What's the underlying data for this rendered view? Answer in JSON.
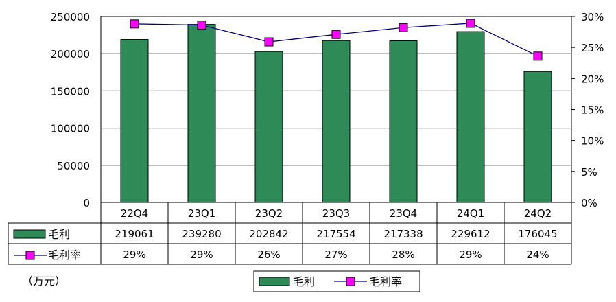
{
  "chart_data": {
    "type": "bar",
    "categories": [
      "22Q4",
      "23Q1",
      "23Q2",
      "23Q3",
      "23Q4",
      "24Q1",
      "24Q2"
    ],
    "series": [
      {
        "name": "毛利",
        "type": "bar",
        "axis": "left",
        "values": [
          219061,
          239280,
          202842,
          217554,
          217338,
          229612,
          176045
        ],
        "labels": [
          "219061",
          "239280",
          "202842",
          "217554",
          "217338",
          "229612",
          "176045"
        ]
      },
      {
        "name": "毛利率",
        "type": "line",
        "axis": "right",
        "values": [
          28.8,
          28.6,
          25.9,
          27.1,
          28.2,
          28.9,
          23.6
        ],
        "labels": [
          "29%",
          "29%",
          "26%",
          "27%",
          "28%",
          "29%",
          "24%"
        ]
      }
    ],
    "ylim": [
      0,
      250000
    ],
    "yticks": [
      "0",
      "50000",
      "100000",
      "150000",
      "200000",
      "250000"
    ],
    "y2lim": [
      0,
      30
    ],
    "y2ticks": [
      "0%",
      "5%",
      "10%",
      "15%",
      "20%",
      "25%",
      "30%"
    ],
    "unit": "（万元）",
    "grid": true,
    "legend_position": "bottom",
    "data_table": true
  },
  "colors": {
    "bar": "#2e8b57",
    "line": "#000080",
    "marker": "#ff00ff",
    "grid": "#000000"
  }
}
